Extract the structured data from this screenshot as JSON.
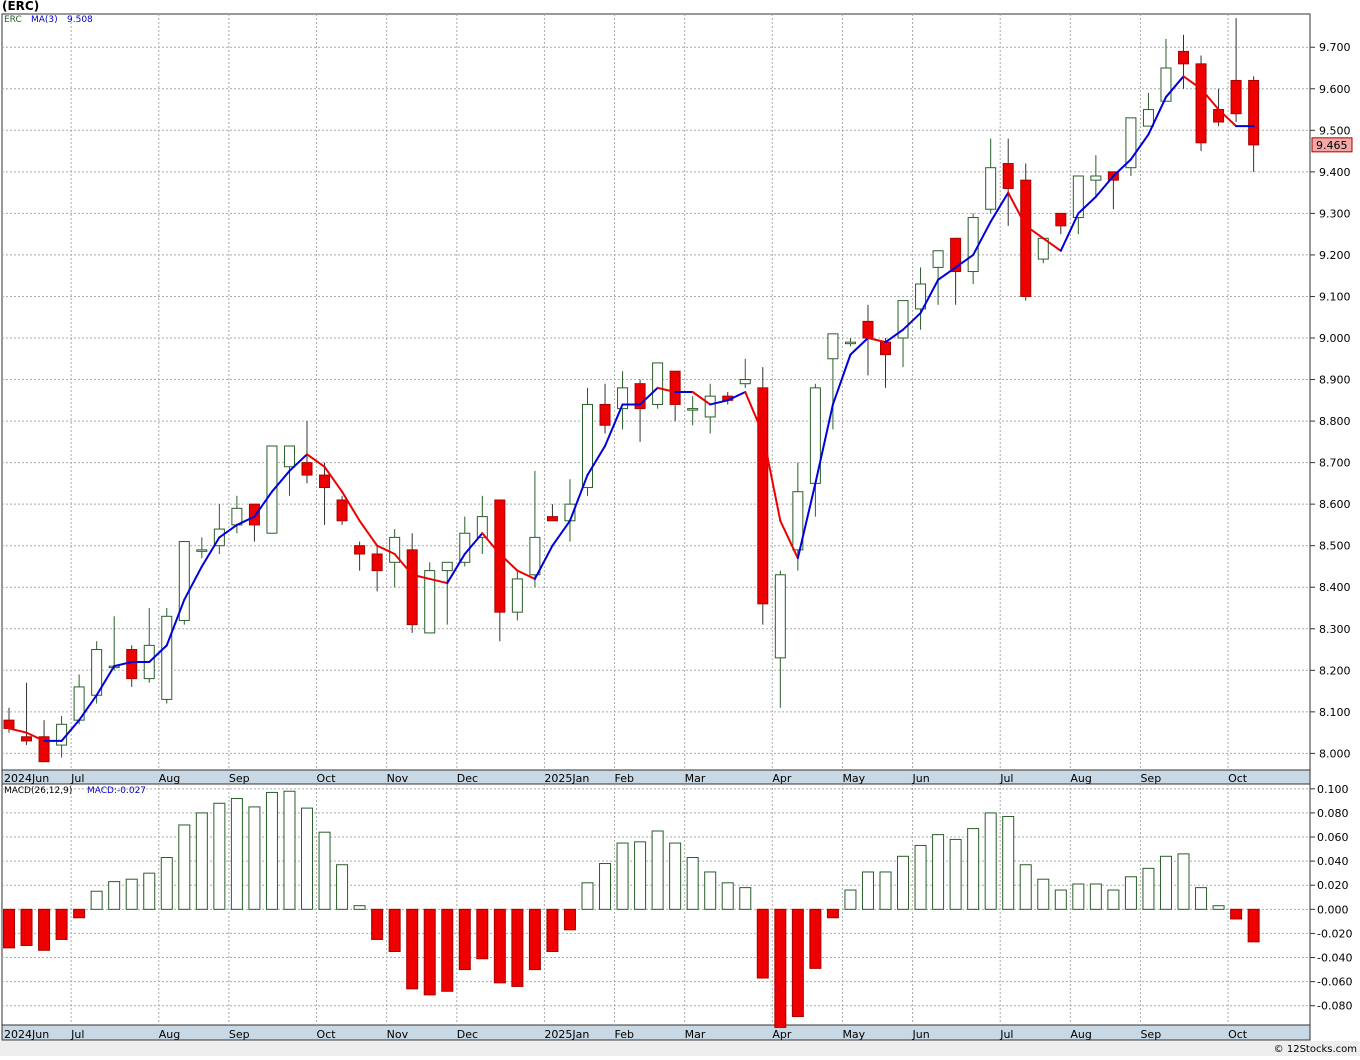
{
  "chart_data": {
    "type": "candlestick",
    "title": "(ERC)",
    "frequency": "weekly",
    "price_panel": {
      "symbol_label": "ERC",
      "ma_label": "MA(3)",
      "ma_value": "9.508",
      "last_price": "9.465",
      "ylim": [
        7.96,
        9.78
      ],
      "y_ticks": [
        "8.000",
        "8.100",
        "8.200",
        "8.300",
        "8.400",
        "8.500",
        "8.600",
        "8.700",
        "8.800",
        "8.900",
        "9.000",
        "9.100",
        "9.200",
        "9.300",
        "9.400",
        "9.500",
        "9.600",
        "9.700"
      ],
      "candles": [
        {
          "o": 8.08,
          "h": 8.11,
          "l": 8.05,
          "c": 8.06
        },
        {
          "o": 8.04,
          "h": 8.17,
          "l": 8.02,
          "c": 8.03
        },
        {
          "o": 8.04,
          "h": 8.08,
          "l": 7.98,
          "c": 7.98
        },
        {
          "o": 8.02,
          "h": 8.09,
          "l": 7.99,
          "c": 8.07
        },
        {
          "o": 8.08,
          "h": 8.19,
          "l": 8.07,
          "c": 8.16
        },
        {
          "o": 8.14,
          "h": 8.27,
          "l": 8.12,
          "c": 8.25
        },
        {
          "o": 8.21,
          "h": 8.33,
          "l": 8.2,
          "c": 8.21
        },
        {
          "o": 8.25,
          "h": 8.26,
          "l": 8.16,
          "c": 8.18
        },
        {
          "o": 8.18,
          "h": 8.35,
          "l": 8.17,
          "c": 8.26
        },
        {
          "o": 8.13,
          "h": 8.35,
          "l": 8.12,
          "c": 8.33
        },
        {
          "o": 8.32,
          "h": 8.51,
          "l": 8.31,
          "c": 8.51
        },
        {
          "o": 8.49,
          "h": 8.52,
          "l": 8.47,
          "c": 8.49
        },
        {
          "o": 8.5,
          "h": 8.6,
          "l": 8.48,
          "c": 8.54
        },
        {
          "o": 8.55,
          "h": 8.62,
          "l": 8.53,
          "c": 8.59
        },
        {
          "o": 8.6,
          "h": 8.6,
          "l": 8.51,
          "c": 8.55
        },
        {
          "o": 8.53,
          "h": 8.74,
          "l": 8.53,
          "c": 8.74
        },
        {
          "o": 8.69,
          "h": 8.74,
          "l": 8.62,
          "c": 8.74
        },
        {
          "o": 8.7,
          "h": 8.8,
          "l": 8.65,
          "c": 8.67
        },
        {
          "o": 8.67,
          "h": 8.7,
          "l": 8.55,
          "c": 8.64
        },
        {
          "o": 8.61,
          "h": 8.62,
          "l": 8.55,
          "c": 8.56
        },
        {
          "o": 8.5,
          "h": 8.51,
          "l": 8.44,
          "c": 8.48
        },
        {
          "o": 8.48,
          "h": 8.5,
          "l": 8.39,
          "c": 8.44
        },
        {
          "o": 8.46,
          "h": 8.54,
          "l": 8.4,
          "c": 8.52
        },
        {
          "o": 8.49,
          "h": 8.53,
          "l": 8.29,
          "c": 8.31
        },
        {
          "o": 8.29,
          "h": 8.46,
          "l": 8.29,
          "c": 8.44
        },
        {
          "o": 8.44,
          "h": 8.46,
          "l": 8.31,
          "c": 8.46
        },
        {
          "o": 8.46,
          "h": 8.57,
          "l": 8.45,
          "c": 8.53
        },
        {
          "o": 8.52,
          "h": 8.62,
          "l": 8.48,
          "c": 8.57
        },
        {
          "o": 8.61,
          "h": 8.61,
          "l": 8.27,
          "c": 8.34
        },
        {
          "o": 8.34,
          "h": 8.44,
          "l": 8.32,
          "c": 8.42
        },
        {
          "o": 8.43,
          "h": 8.68,
          "l": 8.4,
          "c": 8.52
        },
        {
          "o": 8.57,
          "h": 8.6,
          "l": 8.56,
          "c": 8.56
        },
        {
          "o": 8.56,
          "h": 8.66,
          "l": 8.51,
          "c": 8.6
        },
        {
          "o": 8.64,
          "h": 8.88,
          "l": 8.62,
          "c": 8.84
        },
        {
          "o": 8.84,
          "h": 8.89,
          "l": 8.77,
          "c": 8.79
        },
        {
          "o": 8.83,
          "h": 8.92,
          "l": 8.78,
          "c": 8.88
        },
        {
          "o": 8.89,
          "h": 8.9,
          "l": 8.75,
          "c": 8.83
        },
        {
          "o": 8.84,
          "h": 8.94,
          "l": 8.83,
          "c": 8.94
        },
        {
          "o": 8.92,
          "h": 8.92,
          "l": 8.8,
          "c": 8.84
        },
        {
          "o": 8.83,
          "h": 8.86,
          "l": 8.79,
          "c": 8.83
        },
        {
          "o": 8.81,
          "h": 8.89,
          "l": 8.77,
          "c": 8.86
        },
        {
          "o": 8.86,
          "h": 8.87,
          "l": 8.84,
          "c": 8.85
        },
        {
          "o": 8.89,
          "h": 8.95,
          "l": 8.88,
          "c": 8.9
        },
        {
          "o": 8.88,
          "h": 8.93,
          "l": 8.31,
          "c": 8.36
        },
        {
          "o": 8.23,
          "h": 8.44,
          "l": 8.11,
          "c": 8.43
        },
        {
          "o": 8.49,
          "h": 8.7,
          "l": 8.44,
          "c": 8.63
        },
        {
          "o": 8.65,
          "h": 8.89,
          "l": 8.57,
          "c": 8.88
        },
        {
          "o": 8.95,
          "h": 9.01,
          "l": 8.78,
          "c": 9.01
        },
        {
          "o": 8.99,
          "h": 9.0,
          "l": 8.98,
          "c": 8.99
        },
        {
          "o": 9.04,
          "h": 9.08,
          "l": 8.91,
          "c": 9.0
        },
        {
          "o": 8.99,
          "h": 9.0,
          "l": 8.88,
          "c": 8.96
        },
        {
          "o": 9.0,
          "h": 9.09,
          "l": 8.93,
          "c": 9.09
        },
        {
          "o": 9.07,
          "h": 9.17,
          "l": 9.02,
          "c": 9.13
        },
        {
          "o": 9.17,
          "h": 9.21,
          "l": 9.08,
          "c": 9.21
        },
        {
          "o": 9.24,
          "h": 9.24,
          "l": 9.08,
          "c": 9.16
        },
        {
          "o": 9.16,
          "h": 9.3,
          "l": 9.13,
          "c": 9.29
        },
        {
          "o": 9.31,
          "h": 9.48,
          "l": 9.3,
          "c": 9.41
        },
        {
          "o": 9.42,
          "h": 9.48,
          "l": 9.27,
          "c": 9.36
        },
        {
          "o": 9.38,
          "h": 9.42,
          "l": 9.09,
          "c": 9.1
        },
        {
          "o": 9.19,
          "h": 9.24,
          "l": 9.18,
          "c": 9.24
        },
        {
          "o": 9.3,
          "h": 9.3,
          "l": 9.25,
          "c": 9.27
        },
        {
          "o": 9.29,
          "h": 9.39,
          "l": 9.25,
          "c": 9.39
        },
        {
          "o": 9.38,
          "h": 9.44,
          "l": 9.34,
          "c": 9.39
        },
        {
          "o": 9.4,
          "h": 9.39,
          "l": 9.31,
          "c": 9.38
        },
        {
          "o": 9.41,
          "h": 9.53,
          "l": 9.39,
          "c": 9.53
        },
        {
          "o": 9.51,
          "h": 9.59,
          "l": 9.51,
          "c": 9.55
        },
        {
          "o": 9.57,
          "h": 9.72,
          "l": 9.57,
          "c": 9.65
        },
        {
          "o": 9.69,
          "h": 9.73,
          "l": 9.6,
          "c": 9.66
        },
        {
          "o": 9.66,
          "h": 9.68,
          "l": 9.45,
          "c": 9.47
        },
        {
          "o": 9.55,
          "h": 9.6,
          "l": 9.51,
          "c": 9.52
        },
        {
          "o": 9.62,
          "h": 9.77,
          "l": 9.52,
          "c": 9.54
        },
        {
          "o": 9.62,
          "h": 9.63,
          "l": 9.4,
          "c": 9.465
        }
      ],
      "ma3": [
        8.06,
        8.05,
        8.03,
        8.03,
        8.08,
        8.14,
        8.21,
        8.22,
        8.22,
        8.26,
        8.37,
        8.45,
        8.52,
        8.55,
        8.57,
        8.63,
        8.68,
        8.72,
        8.69,
        8.63,
        8.56,
        8.5,
        8.48,
        8.43,
        8.42,
        8.41,
        8.48,
        8.53,
        8.48,
        8.44,
        8.42,
        8.5,
        8.56,
        8.67,
        8.74,
        8.84,
        8.84,
        8.88,
        8.87,
        8.87,
        8.84,
        8.85,
        8.87,
        8.77,
        8.56,
        8.47,
        8.65,
        8.84,
        8.96,
        9.0,
        8.99,
        9.02,
        9.06,
        9.14,
        9.17,
        9.2,
        9.28,
        9.35,
        9.27,
        9.24,
        9.21,
        9.3,
        9.34,
        9.39,
        9.43,
        9.49,
        9.58,
        9.63,
        9.6,
        9.55,
        9.51,
        9.51
      ]
    },
    "macd_panel": {
      "label": "MACD(26,12,9)",
      "value_label": "MACD:-0.027",
      "ylim": [
        -0.096,
        0.104
      ],
      "y_ticks": [
        "0.100",
        "0.080",
        "0.060",
        "0.040",
        "0.020",
        "0.000",
        "-0.020",
        "-0.040",
        "-0.060",
        "-0.080"
      ],
      "histogram": [
        -0.032,
        -0.03,
        -0.034,
        -0.025,
        -0.007,
        0.015,
        0.023,
        0.025,
        0.03,
        0.043,
        0.07,
        0.08,
        0.088,
        0.092,
        0.085,
        0.097,
        0.098,
        0.084,
        0.064,
        0.037,
        0.003,
        -0.025,
        -0.035,
        -0.066,
        -0.071,
        -0.068,
        -0.05,
        -0.041,
        -0.061,
        -0.064,
        -0.05,
        -0.035,
        -0.017,
        0.022,
        0.038,
        0.055,
        0.056,
        0.065,
        0.055,
        0.043,
        0.031,
        0.022,
        0.018,
        -0.057,
        -0.098,
        -0.089,
        -0.049,
        -0.007,
        0.016,
        0.031,
        0.031,
        0.044,
        0.053,
        0.062,
        0.058,
        0.067,
        0.08,
        0.077,
        0.037,
        0.025,
        0.016,
        0.021,
        0.021,
        0.016,
        0.027,
        0.034,
        0.044,
        0.046,
        0.018,
        0.003,
        -0.008,
        -0.027
      ]
    },
    "x_axis_labels": [
      {
        "label": "2024Jun",
        "week": 0
      },
      {
        "label": "Jul",
        "week": 4
      },
      {
        "label": "Aug",
        "week": 9
      },
      {
        "label": "Sep",
        "week": 13
      },
      {
        "label": "Oct",
        "week": 18
      },
      {
        "label": "Nov",
        "week": 22
      },
      {
        "label": "Dec",
        "week": 26
      },
      {
        "label": "2025Jan",
        "week": 31
      },
      {
        "label": "Feb",
        "week": 35
      },
      {
        "label": "Mar",
        "week": 39
      },
      {
        "label": "Apr",
        "week": 44
      },
      {
        "label": "May",
        "week": 48
      },
      {
        "label": "Jun",
        "week": 52
      },
      {
        "label": "Jul",
        "week": 57
      },
      {
        "label": "Aug",
        "week": 61
      },
      {
        "label": "Sep",
        "week": 65
      },
      {
        "label": "Oct",
        "week": 70
      }
    ],
    "colors": {
      "up": "#ffffff",
      "up_stroke": "#2a5e2a",
      "down": "#ee0000",
      "ma_up": "#0000dd",
      "ma_down": "#ee0000",
      "macd_pos": "#2a5e2a",
      "macd_neg": "#ee0000",
      "grid": "#aaaaaa",
      "axis_band": "#c8d8e4"
    },
    "grid": true
  },
  "credit": "© 12Stocks.com"
}
